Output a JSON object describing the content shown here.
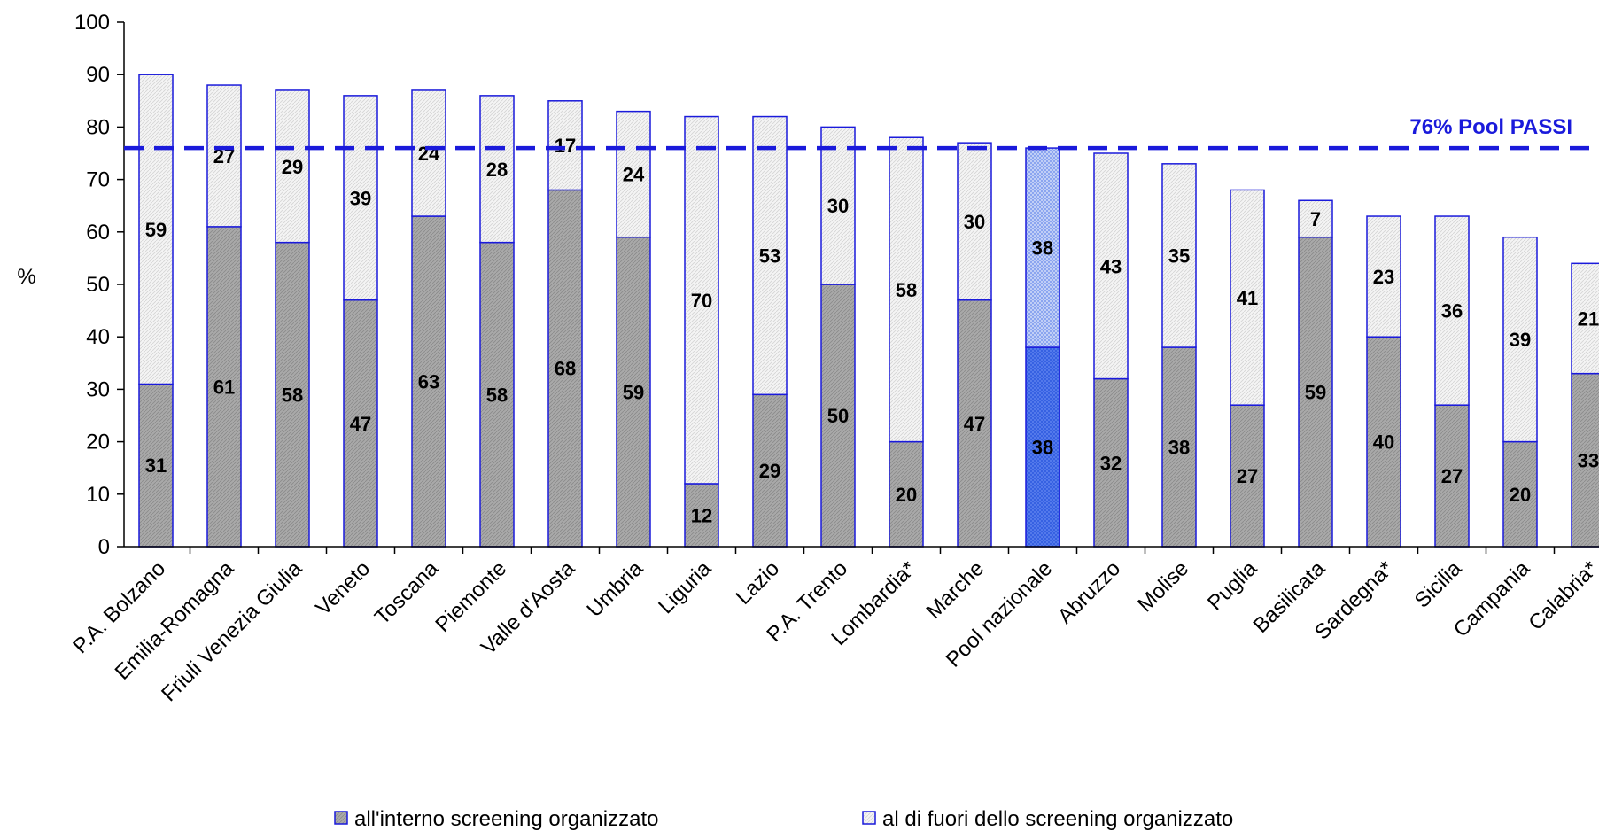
{
  "chart_data": {
    "type": "bar",
    "stacked": true,
    "ylabel": "%",
    "ylim": [
      0,
      100
    ],
    "yticks": [
      "0",
      "10",
      "20",
      "30",
      "40",
      "50",
      "60",
      "70",
      "80",
      "90",
      "100"
    ],
    "categories": [
      "P.A. Bolzano",
      "Emilia-Romagna",
      "Friuli Venezia Giulia",
      "Veneto",
      "Toscana",
      "Piemonte",
      "Valle d'Aosta",
      "Umbria",
      "Liguria",
      "Lazio",
      "P.A. Trento",
      "Lombardia*",
      "Marche",
      "Pool nazionale",
      "Abruzzo",
      "Molise",
      "Puglia",
      "Basilicata",
      "Sardegna*",
      "Sicilia",
      "Campania",
      "Calabria*"
    ],
    "highlight_category": "Pool nazionale",
    "series": [
      {
        "name": "all'interno screening organizzato",
        "values": [
          31,
          61,
          58,
          47,
          63,
          58,
          68,
          59,
          12,
          29,
          50,
          20,
          47,
          38,
          32,
          38,
          27,
          59,
          40,
          27,
          20,
          33
        ]
      },
      {
        "name": "al di fuori dello screening organizzato",
        "values": [
          59,
          27,
          29,
          39,
          24,
          28,
          17,
          24,
          70,
          53,
          30,
          58,
          30,
          38,
          43,
          35,
          41,
          7,
          23,
          36,
          39,
          21
        ]
      }
    ],
    "reference_line": {
      "value": 76,
      "label": "76% Pool PASSI"
    },
    "colors": {
      "inside": "#a6a6a6",
      "outside": "#f0f0f0",
      "highlight_inside": "#4f76e8",
      "highlight_outside": "#c5d3f6",
      "border": "#1a1adb",
      "reference": "#1a1adb"
    },
    "legend_position": "bottom",
    "grid": false
  }
}
